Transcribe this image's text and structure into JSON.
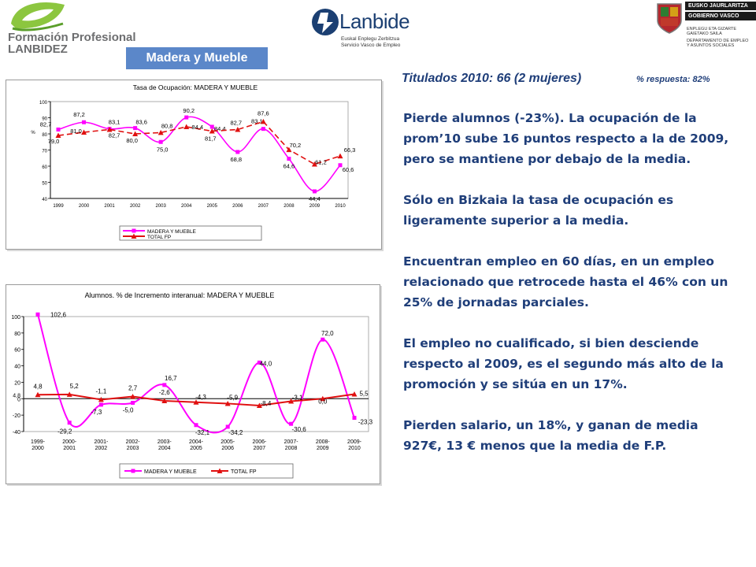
{
  "header": {
    "fp_logo": {
      "line1": "Formación Profesional",
      "line2": "LANBIDEZ"
    },
    "lanbide_logo": {
      "name": "Lanbide",
      "sub1": "Euskal Enplegu Zerbitzua",
      "sub2": "Servicio Vasco de Empleo"
    },
    "gv_logo": {
      "bar1": "EUSKO JAURLARITZA",
      "bar2": "GOBIERNO VASCO",
      "dept1": "ENPLEGU ETA GIZARTE",
      "dept2": "GAIETAKO SAILA",
      "dept3": "DEPARTAMENTO DE EMPLEO",
      "dept4": "Y ASUNTOS SOCIALES"
    },
    "section": "Madera y Mueble"
  },
  "headline": {
    "titulados": "Titulados 2010: 66 (2 mujeres)",
    "respuesta": "% respuesta:  82%"
  },
  "body": {
    "p1": "Pierde alumnos (-23%). La ocupación de la prom’10  sube 16 puntos respecto a la de 2009, pero se mantiene por debajo de la media.",
    "p2": "Sólo en Bizkaia la tasa de ocupación es ligeramente superior a la media.",
    "p3": "Encuentran empleo en 60 días, en un empleo relacionado que retrocede hasta el 46% con un 25% de jornadas parciales.",
    "p4": "El empleo no cualificado, si bien desciende respecto al 2009, es el segundo más alto de la promoción y se sitúa en un 17%.",
    "p5": "Pierden salario, un 18%, y ganan de media 927€, 13 € menos que la media de F.P."
  },
  "colors": {
    "madera": "#ff00ff",
    "total": "#e01010",
    "headline": "#1f3e79",
    "badge": "#5b87c9"
  },
  "chart_data": [
    {
      "type": "line",
      "title": "Tasa de Ocupación: MADERA Y MUEBLE",
      "ylabel": "%",
      "xlabel": "",
      "ylim": [
        40,
        100
      ],
      "yticks": [
        40,
        50,
        60,
        70,
        80,
        90,
        100
      ],
      "categories": [
        "1999",
        "2000",
        "2001",
        "2002",
        "2003",
        "2004",
        "2005",
        "2006",
        "2007",
        "2008",
        "2009",
        "2010"
      ],
      "legend_position": "bottom",
      "grid": false,
      "series": [
        {
          "name": "MADERA Y MUEBLE",
          "values": [
            82.7,
            87.2,
            83.1,
            83.6,
            75.0,
            90.2,
            84.4,
            68.8,
            83.1,
            64.6,
            44.4,
            60.6
          ],
          "labels": [
            "82,7",
            "87,2",
            "83,1",
            "83,6",
            "75,0",
            "90,2",
            "84,4",
            "68,8",
            "83,1",
            "64,6",
            "44,4",
            "60,6"
          ]
        },
        {
          "name": "TOTAL FP",
          "values": [
            79.0,
            81.0,
            82.7,
            80.0,
            80.8,
            84.4,
            81.7,
            82.7,
            87.6,
            70.2,
            61.2,
            66.3
          ],
          "labels": [
            "79,0",
            "81,0",
            "82,7",
            "80,0",
            "80,8",
            "84,4",
            "81,7",
            "82,7",
            "87,6",
            "70,2",
            "61,2",
            "66,3"
          ]
        }
      ]
    },
    {
      "type": "line",
      "title": "Alumnos. % de Incremento interanual: MADERA Y MUEBLE",
      "xlabel": "",
      "ylabel": "",
      "ylim": [
        -40,
        100
      ],
      "yticks": [
        -40,
        -20,
        0,
        20,
        40,
        60,
        80,
        100
      ],
      "extra_ytick": "4,8",
      "categories": [
        "1999-\n2000",
        "2000-\n2001",
        "2001-\n2002",
        "2002-\n2003",
        "2003-\n2004",
        "2004-\n2005",
        "2005-\n2006",
        "2006-\n2007",
        "2007-\n2008",
        "2008-\n2009",
        "2009-\n2010"
      ],
      "legend_position": "bottom",
      "grid": false,
      "series": [
        {
          "name": "MADERA Y MUEBLE",
          "values": [
            102.6,
            -29.2,
            -7.3,
            -5.0,
            16.7,
            -32.1,
            -34.2,
            44.0,
            -30.6,
            72.0,
            -23.3
          ],
          "labels": [
            "102,6",
            "-29,2",
            "-7,3",
            "-5,0",
            "16,7",
            "-32,1",
            "-34,2",
            "44,0",
            "-30,6",
            "72,0",
            "-23,3"
          ]
        },
        {
          "name": "TOTAL FP",
          "values": [
            4.8,
            5.2,
            -1.1,
            2.7,
            -2.6,
            -4.3,
            -5.9,
            -8.4,
            -3.1,
            0.0,
            5.5
          ],
          "labels": [
            "4,8",
            "5,2",
            "-1,1",
            "2,7",
            "-2,6",
            "-4,3",
            "-5,9",
            "-8,4",
            "-3,1",
            "0,0",
            "5,5"
          ]
        }
      ]
    }
  ]
}
